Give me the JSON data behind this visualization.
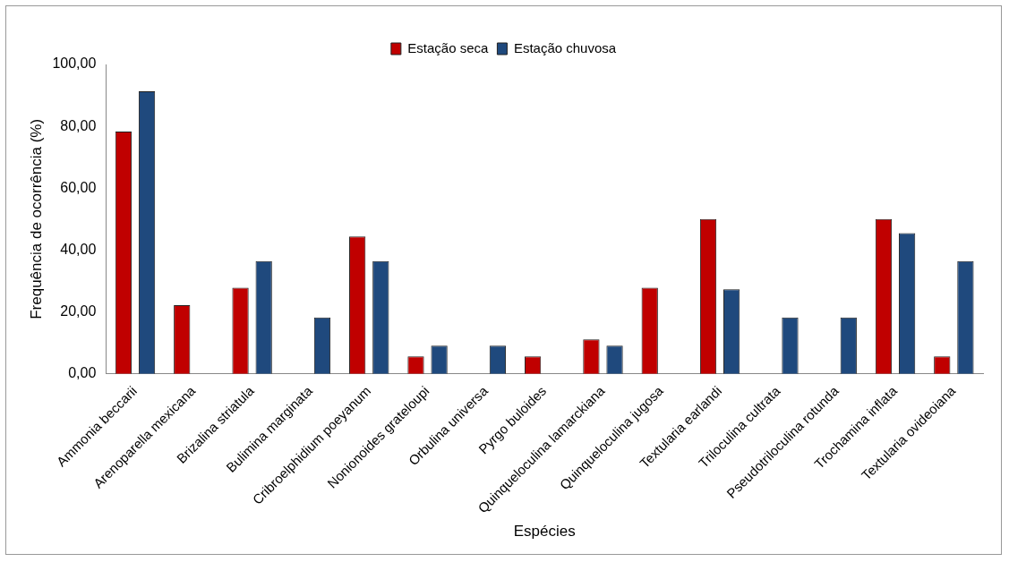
{
  "chart_data": {
    "type": "bar",
    "xlabel": "Espécies",
    "ylabel": "Frequência de ocorrência (%)",
    "categories": [
      "Ammonia beccarii",
      "Arenoparella mexicana",
      "Brizalina striatula",
      "Bulimina marginata",
      "Cribroelphidium poeyanum",
      "Nonionoides grateloupi",
      "Orbulina universa",
      "Pyrgo buloides",
      "Quinqueloculina lamarckiana",
      "Quinqueloculina jugosa",
      "Textularia earlandi",
      "Triloculina cultrata",
      "Pseudotriloculina rotunda",
      "Trochamina inflata",
      "Textularia ovideoiana"
    ],
    "series": [
      {
        "name": "Estação seca",
        "color": "#c00000",
        "values": [
          78.3,
          22.2,
          27.8,
          0,
          44.4,
          5.6,
          0,
          5.6,
          11.1,
          27.8,
          50,
          0,
          0,
          50,
          5.6
        ]
      },
      {
        "name": "Estação chuvosa",
        "color": "#1f497d",
        "values": [
          91.3,
          0,
          36.4,
          18.2,
          36.4,
          9.1,
          9.1,
          0,
          9.1,
          0,
          27.3,
          18.2,
          18.2,
          45.5,
          36.4
        ]
      }
    ],
    "ylim": [
      0,
      100
    ],
    "yticks": [
      {
        "value": 0,
        "label": "0,00"
      },
      {
        "value": 20,
        "label": "20,00"
      },
      {
        "value": 40,
        "label": "40,00"
      },
      {
        "value": 60,
        "label": "60,00"
      },
      {
        "value": 80,
        "label": "80,00"
      },
      {
        "value": 100,
        "label": "100,00"
      }
    ],
    "grid": false,
    "legend": "top"
  }
}
